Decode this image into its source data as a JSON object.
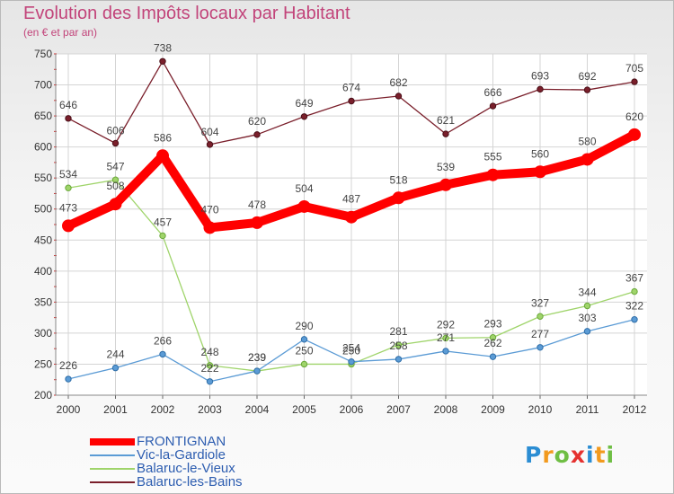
{
  "chart_data": {
    "type": "line",
    "title": "Evolution des Impôts locaux par Habitant",
    "subtitle": "(en € et par an)",
    "xlabel": "",
    "ylabel": "",
    "categories": [
      "2000",
      "2001",
      "2002",
      "2003",
      "2004",
      "2005",
      "2006",
      "2007",
      "2008",
      "2009",
      "2010",
      "2011",
      "2012"
    ],
    "ylim": [
      200,
      750
    ],
    "yticks": [
      200,
      250,
      300,
      350,
      400,
      450,
      500,
      550,
      600,
      650,
      700,
      750
    ],
    "grid": true,
    "legend_position": "bottom-left",
    "series": [
      {
        "name": "FRONTIGNAN",
        "color": "#ff0000",
        "values": [
          473,
          508,
          586,
          470,
          478,
          504,
          487,
          518,
          539,
          555,
          560,
          580,
          620
        ]
      },
      {
        "name": "Vic-la-Gardiole",
        "color": "#5b9bd5",
        "values": [
          226,
          244,
          266,
          222,
          239,
          290,
          254,
          258,
          271,
          262,
          277,
          303,
          322
        ]
      },
      {
        "name": "Balaruc-le-Vieux",
        "color": "#9fd46a",
        "values": [
          534,
          547,
          457,
          248,
          239,
          250,
          250,
          281,
          292,
          293,
          327,
          344,
          367
        ]
      },
      {
        "name": "Balaruc-les-Bains",
        "color": "#7a1f2b",
        "values": [
          646,
          606,
          738,
          604,
          620,
          649,
          674,
          682,
          621,
          666,
          693,
          692,
          705
        ]
      }
    ]
  },
  "logo": {
    "letters": [
      "P",
      "r",
      "o",
      "x",
      "i",
      "t",
      "i"
    ]
  }
}
